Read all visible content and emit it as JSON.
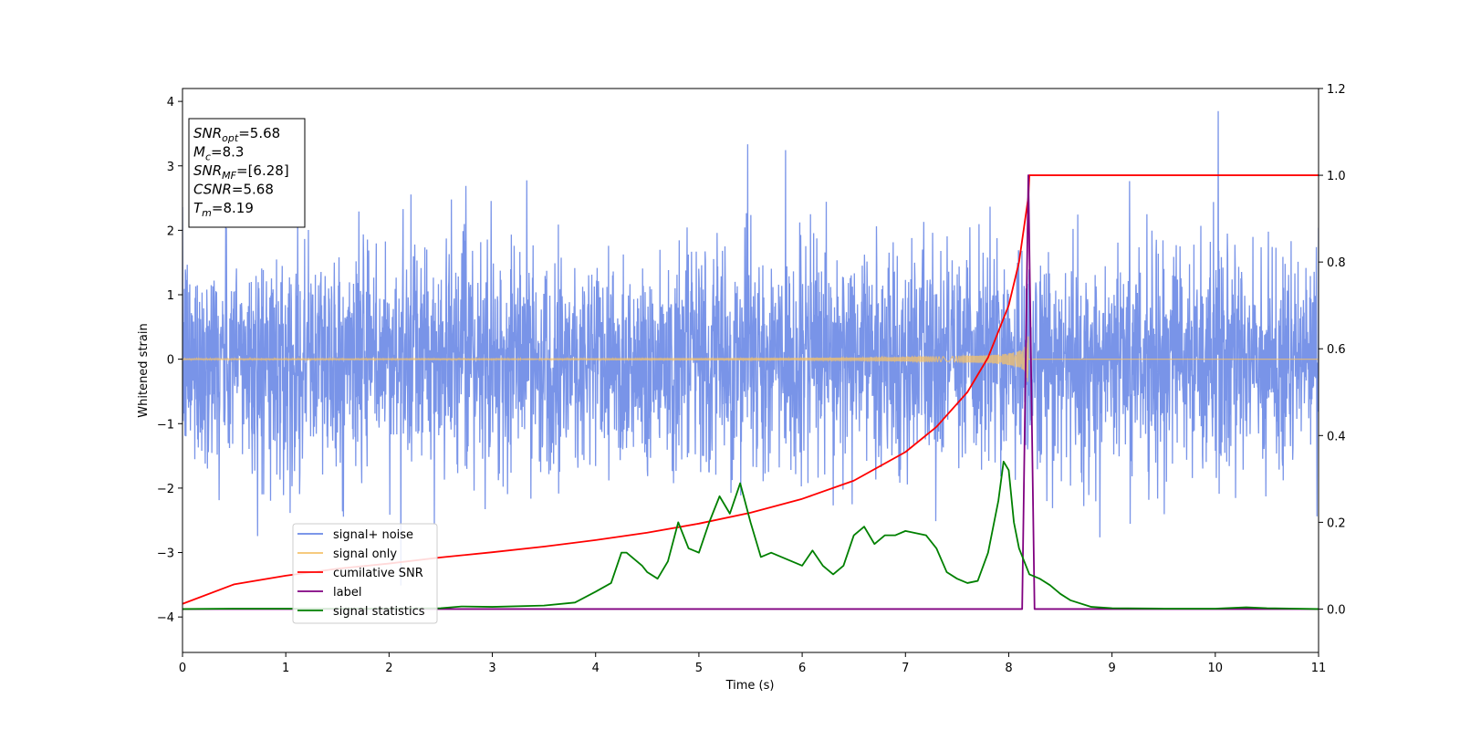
{
  "chart_data": {
    "type": "line",
    "xlabel": "Time (s)",
    "ylabel": "Whitened strain",
    "xlim": [
      0,
      11
    ],
    "ylim_left": [
      -4.55,
      4.2
    ],
    "ylim_right": [
      -0.1,
      1.2
    ],
    "x_ticks": [
      0,
      1,
      2,
      3,
      4,
      5,
      6,
      7,
      8,
      9,
      10,
      11
    ],
    "y_ticks_left": [
      -4,
      -3,
      -2,
      -1,
      0,
      1,
      2,
      3,
      4
    ],
    "y_ticks_left_labels": [
      "−4",
      "−3",
      "−2",
      "−1",
      "0",
      "1",
      "2",
      "3",
      "4"
    ],
    "y_ticks_right": [
      0.0,
      0.2,
      0.4,
      0.6,
      0.8,
      1.0,
      1.2
    ],
    "y_ticks_right_labels": [
      "0.0",
      "0.2",
      "0.4",
      "0.6",
      "0.8",
      "1.0",
      "1.2"
    ],
    "legend_position": "lower-left",
    "grid": false,
    "annotation": {
      "lines": [
        {
          "main": "SNR",
          "sub": "opt",
          "value": "=5.68"
        },
        {
          "main": "M",
          "sub": "c",
          "value": "=8.3"
        },
        {
          "main": "SNR",
          "sub": "MF",
          "value": "=[6.28]"
        },
        {
          "main": "CSNR",
          "sub": "",
          "value": "=5.68"
        },
        {
          "main": "T",
          "sub": "m",
          "value": "=8.19"
        }
      ]
    },
    "series": [
      {
        "name": "signal+ noise",
        "color": "#6a88e6",
        "axis": "left",
        "kind": "noise",
        "noise_sigma": 0.85,
        "x_range": [
          0,
          11
        ]
      },
      {
        "name": "signal only",
        "color": "#f5c36b",
        "axis": "left",
        "kind": "chirp",
        "merger_time": 8.19,
        "amplitude_start": 0.02,
        "amplitude_peak": 0.65
      },
      {
        "name": "cumilative SNR",
        "color": "#ff0000",
        "axis": "right",
        "x": [
          0,
          0.5,
          1,
          1.5,
          2,
          2.5,
          3,
          3.5,
          4,
          4.5,
          5,
          5.5,
          6,
          6.5,
          7,
          7.3,
          7.6,
          7.8,
          8.0,
          8.1,
          8.19,
          8.2,
          11
        ],
        "y": [
          0.012,
          0.057,
          0.077,
          0.093,
          0.105,
          0.119,
          0.131,
          0.144,
          0.159,
          0.176,
          0.197,
          0.222,
          0.254,
          0.296,
          0.362,
          0.42,
          0.5,
          0.58,
          0.7,
          0.8,
          0.95,
          1.0,
          1.0
        ]
      },
      {
        "name": "label",
        "color": "#800080",
        "axis": "right",
        "x": [
          0,
          8.13,
          8.19,
          8.25,
          11
        ],
        "y": [
          0,
          0,
          1.0,
          0,
          0
        ]
      },
      {
        "name": "signal statistics",
        "color": "#008000",
        "axis": "right",
        "x": [
          0,
          0.5,
          1,
          1.5,
          2,
          2.5,
          2.7,
          3,
          3.5,
          3.8,
          4,
          4.15,
          4.25,
          4.3,
          4.45,
          4.5,
          4.6,
          4.7,
          4.8,
          4.9,
          5.0,
          5.1,
          5.2,
          5.3,
          5.4,
          5.5,
          5.6,
          5.7,
          5.8,
          5.9,
          6.0,
          6.1,
          6.2,
          6.3,
          6.4,
          6.5,
          6.6,
          6.7,
          6.8,
          6.9,
          7.0,
          7.1,
          7.2,
          7.3,
          7.4,
          7.5,
          7.6,
          7.7,
          7.8,
          7.9,
          7.95,
          8.0,
          8.05,
          8.1,
          8.2,
          8.3,
          8.4,
          8.5,
          8.6,
          8.8,
          9.0,
          9.5,
          10,
          10.3,
          10.5,
          11
        ],
        "y": [
          0.0,
          0.001,
          0.001,
          0.001,
          0.001,
          0.002,
          0.006,
          0.005,
          0.008,
          0.015,
          0.04,
          0.06,
          0.13,
          0.13,
          0.1,
          0.085,
          0.07,
          0.11,
          0.2,
          0.14,
          0.13,
          0.2,
          0.26,
          0.22,
          0.29,
          0.2,
          0.12,
          0.13,
          0.12,
          0.11,
          0.1,
          0.135,
          0.1,
          0.08,
          0.1,
          0.17,
          0.19,
          0.15,
          0.17,
          0.17,
          0.18,
          0.175,
          0.17,
          0.14,
          0.085,
          0.07,
          0.06,
          0.065,
          0.13,
          0.25,
          0.34,
          0.32,
          0.2,
          0.14,
          0.08,
          0.07,
          0.055,
          0.035,
          0.02,
          0.005,
          0.002,
          0.001,
          0.001,
          0.004,
          0.002,
          0.0
        ]
      }
    ]
  }
}
